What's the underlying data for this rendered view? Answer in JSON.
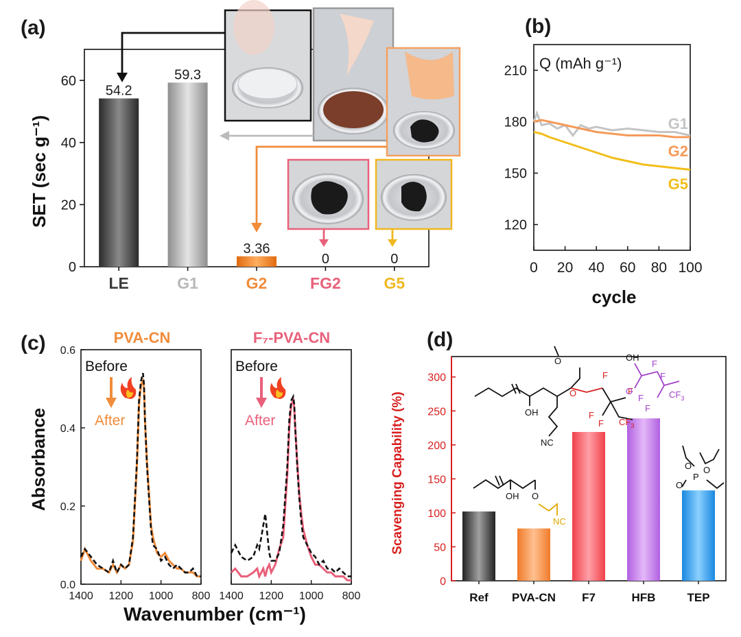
{
  "panels": {
    "a": "(a)",
    "b": "(b)",
    "c": "(c)",
    "d": "(d)"
  },
  "colors": {
    "LE": "#4a4a4a",
    "G1": "#b8b8b8",
    "G2": "#f08c3a",
    "FG2": "#e8607a",
    "G5": "#f0b820",
    "HFB": "#c07ce8",
    "TEP": "#2a9de8",
    "d_axis": "#d81e1e",
    "purple_struct": "#a040c8",
    "red_struct": "#d81e1e",
    "gold_struct": "#e0a800"
  },
  "chart_data": [
    {
      "panel": "a",
      "type": "bar",
      "categories": [
        "LE",
        "G1",
        "G2",
        "FG2",
        "G5"
      ],
      "values": [
        54.2,
        59.3,
        3.36,
        0,
        0
      ],
      "value_labels": [
        "54.2",
        "59.3",
        "3.36",
        "0",
        "0"
      ],
      "ylabel": "SET (sec g⁻¹)",
      "ylim": [
        0,
        70
      ],
      "yticks": [
        "0",
        "20",
        "40",
        "60"
      ],
      "legend": "none",
      "inset_photos": [
        "LE",
        "G1",
        "G2",
        "FG2",
        "G5"
      ]
    },
    {
      "panel": "b",
      "type": "line",
      "xlabel": "cycle",
      "ylabel": "Q (mAh g⁻¹)",
      "xlim": [
        0,
        100
      ],
      "ylim": [
        105,
        225
      ],
      "xticks": [
        "0",
        "20",
        "40",
        "60",
        "80",
        "100"
      ],
      "yticks": [
        "120",
        "150",
        "180",
        "210"
      ],
      "series": [
        {
          "name": "G1",
          "x": [
            0,
            2,
            5,
            10,
            15,
            20,
            25,
            30,
            35,
            40,
            50,
            60,
            70,
            80,
            90,
            100
          ],
          "y": [
            180,
            185,
            178,
            179,
            176,
            178,
            172,
            178,
            176,
            177,
            175,
            176,
            175,
            174,
            174,
            172
          ]
        },
        {
          "name": "G2",
          "x": [
            0,
            5,
            10,
            20,
            30,
            40,
            50,
            60,
            70,
            80,
            90,
            100
          ],
          "y": [
            180,
            181,
            180,
            178,
            176,
            174,
            173,
            172,
            172,
            172,
            171,
            171
          ]
        },
        {
          "name": "G5",
          "x": [
            0,
            5,
            10,
            20,
            30,
            40,
            50,
            60,
            70,
            80,
            90,
            100
          ],
          "y": [
            174,
            173,
            171,
            168,
            165,
            162,
            159,
            157,
            155,
            154,
            153,
            152
          ]
        }
      ]
    },
    {
      "panel": "c-left",
      "type": "line",
      "title": "PVA-CN",
      "ylabel": "Absorbance",
      "xlim": [
        1400,
        800
      ],
      "ylim": [
        0,
        0.6
      ],
      "xticks": [
        "1400",
        "1200",
        "1000",
        "800"
      ],
      "yticks": [
        "0.0",
        "0.2",
        "0.4",
        "0.6"
      ],
      "annotation_before": "Before",
      "annotation_after": "After",
      "series": [
        {
          "name": "Before",
          "style": "dashed",
          "x": [
            1400,
            1380,
            1350,
            1320,
            1290,
            1260,
            1240,
            1220,
            1200,
            1180,
            1160,
            1140,
            1120,
            1110,
            1100,
            1090,
            1085,
            1080,
            1070,
            1060,
            1050,
            1040,
            1020,
            1000,
            980,
            960,
            940,
            920,
            900,
            880,
            860,
            840,
            820,
            800
          ],
          "y": [
            0.07,
            0.09,
            0.07,
            0.05,
            0.04,
            0.03,
            0.06,
            0.03,
            0.05,
            0.04,
            0.05,
            0.12,
            0.32,
            0.47,
            0.52,
            0.54,
            0.51,
            0.42,
            0.3,
            0.22,
            0.14,
            0.1,
            0.09,
            0.06,
            0.07,
            0.05,
            0.04,
            0.05,
            0.04,
            0.03,
            0.03,
            0.04,
            0.02,
            0.02
          ]
        },
        {
          "name": "After",
          "style": "solid",
          "x": [
            1400,
            1380,
            1350,
            1320,
            1290,
            1260,
            1240,
            1220,
            1200,
            1180,
            1160,
            1140,
            1120,
            1110,
            1100,
            1090,
            1085,
            1080,
            1070,
            1060,
            1050,
            1040,
            1020,
            1000,
            980,
            960,
            940,
            920,
            900,
            880,
            860,
            840,
            820,
            800
          ],
          "y": [
            0.06,
            0.09,
            0.06,
            0.04,
            0.04,
            0.03,
            0.05,
            0.03,
            0.05,
            0.04,
            0.05,
            0.11,
            0.31,
            0.46,
            0.51,
            0.52,
            0.5,
            0.42,
            0.31,
            0.23,
            0.15,
            0.12,
            0.08,
            0.07,
            0.08,
            0.06,
            0.05,
            0.04,
            0.04,
            0.03,
            0.03,
            0.03,
            0.02,
            0.02
          ]
        }
      ]
    },
    {
      "panel": "c-right",
      "type": "line",
      "title": "F₇-PVA-CN",
      "xlim": [
        1400,
        800
      ],
      "ylim": [
        0,
        0.6
      ],
      "xticks": [
        "1400",
        "1200",
        "1000",
        "800"
      ],
      "annotation_before": "Before",
      "annotation_after": "After",
      "series": [
        {
          "name": "Before",
          "style": "dashed",
          "x": [
            1400,
            1380,
            1350,
            1320,
            1290,
            1270,
            1260,
            1250,
            1240,
            1230,
            1220,
            1210,
            1200,
            1180,
            1160,
            1140,
            1120,
            1110,
            1100,
            1090,
            1085,
            1080,
            1070,
            1060,
            1050,
            1040,
            1020,
            1000,
            980,
            960,
            940,
            920,
            900,
            880,
            860,
            840,
            820,
            800
          ],
          "y": [
            0.08,
            0.1,
            0.07,
            0.06,
            0.07,
            0.1,
            0.09,
            0.12,
            0.15,
            0.18,
            0.13,
            0.08,
            0.06,
            0.06,
            0.08,
            0.15,
            0.3,
            0.42,
            0.47,
            0.48,
            0.46,
            0.4,
            0.3,
            0.22,
            0.16,
            0.12,
            0.1,
            0.08,
            0.07,
            0.05,
            0.06,
            0.04,
            0.04,
            0.03,
            0.04,
            0.03,
            0.02,
            0.02
          ]
        },
        {
          "name": "After",
          "style": "solid",
          "x": [
            1400,
            1380,
            1350,
            1320,
            1290,
            1270,
            1260,
            1250,
            1240,
            1230,
            1220,
            1210,
            1200,
            1180,
            1160,
            1140,
            1120,
            1110,
            1100,
            1090,
            1085,
            1080,
            1070,
            1060,
            1050,
            1040,
            1020,
            1000,
            980,
            960,
            940,
            920,
            900,
            880,
            860,
            840,
            820,
            800
          ],
          "y": [
            0.03,
            0.04,
            0.02,
            0.02,
            0.03,
            0.04,
            0.02,
            0.03,
            0.04,
            0.02,
            0.04,
            0.05,
            0.03,
            0.05,
            0.09,
            0.12,
            0.28,
            0.4,
            0.46,
            0.47,
            0.45,
            0.4,
            0.31,
            0.23,
            0.18,
            0.14,
            0.1,
            0.07,
            0.05,
            0.05,
            0.04,
            0.03,
            0.03,
            0.02,
            0.02,
            0.02,
            0.01,
            0.01
          ]
        }
      ]
    },
    {
      "panel": "c-shared",
      "xlabel": "Wavenumber (cm⁻¹)"
    },
    {
      "panel": "d",
      "type": "bar",
      "categories": [
        "Ref",
        "PVA-CN",
        "F7",
        "HFB",
        "TEP"
      ],
      "values": [
        102,
        77,
        219,
        239,
        133
      ],
      "ylabel": "Scavenging Capability (%)",
      "ylim": [
        0,
        330
      ],
      "yticks": [
        "0",
        "50",
        "100",
        "150",
        "200",
        "250",
        "300"
      ],
      "structure_labels": {
        "oh": "OH",
        "o": "O",
        "nc": "NC",
        "f": "F",
        "cf3": "CF",
        "cf3_sub": "3",
        "p": "P"
      }
    }
  ]
}
